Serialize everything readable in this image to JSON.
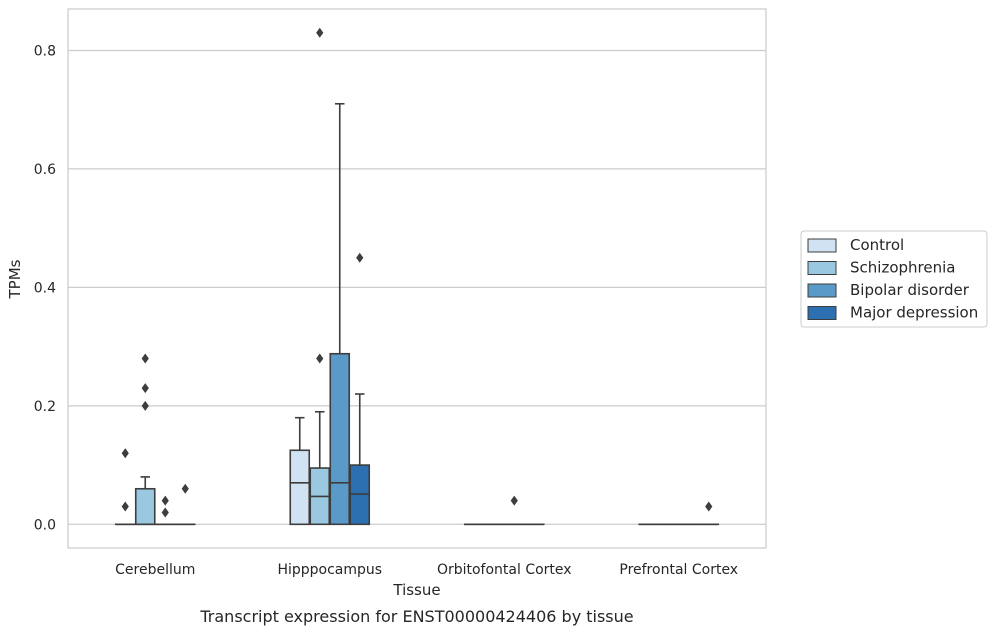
{
  "chart_data": {
    "type": "box",
    "caption": "Transcript expression for ENST00000424406 by tissue",
    "xlabel": "Tissue",
    "ylabel": "TPMs",
    "ylim": [
      -0.04,
      0.87
    ],
    "yticks": [
      0.0,
      0.2,
      0.4,
      0.6,
      0.8
    ],
    "ytick_labels": [
      "0.0",
      "0.2",
      "0.4",
      "0.6",
      "0.8"
    ],
    "grid": "horizontal",
    "legend_position": "right",
    "categories": [
      "Cerebellum",
      "Hipppocampus",
      "Orbitofontal Cortex",
      "Prefrontal Cortex"
    ],
    "series": [
      {
        "name": "Control",
        "color": "#d1e2f2",
        "boxes": [
          {
            "q1": 0,
            "median": 0,
            "q3": 0,
            "whisker_low": 0,
            "whisker_high": 0,
            "outliers": [
              0.03,
              0.12
            ]
          },
          {
            "q1": 0,
            "median": 0.07,
            "q3": 0.125,
            "whisker_low": 0,
            "whisker_high": 0.18,
            "outliers": []
          },
          {
            "q1": 0,
            "median": 0,
            "q3": 0,
            "whisker_low": 0,
            "whisker_high": 0,
            "outliers": []
          },
          {
            "q1": 0,
            "median": 0,
            "q3": 0,
            "whisker_low": 0,
            "whisker_high": 0,
            "outliers": []
          }
        ]
      },
      {
        "name": "Schizophrenia",
        "color": "#9ac8e0",
        "boxes": [
          {
            "q1": 0,
            "median": 0,
            "q3": 0.06,
            "whisker_low": 0,
            "whisker_high": 0.08,
            "outliers": [
              0.2,
              0.23,
              0.28
            ]
          },
          {
            "q1": 0,
            "median": 0.047,
            "q3": 0.095,
            "whisker_low": 0,
            "whisker_high": 0.19,
            "outliers": [
              0.28,
              0.83
            ]
          },
          {
            "q1": 0,
            "median": 0,
            "q3": 0,
            "whisker_low": 0,
            "whisker_high": 0,
            "outliers": []
          },
          {
            "q1": 0,
            "median": 0,
            "q3": 0,
            "whisker_low": 0,
            "whisker_high": 0,
            "outliers": []
          }
        ]
      },
      {
        "name": "Bipolar disorder",
        "color": "#5a9ac8",
        "boxes": [
          {
            "q1": 0,
            "median": 0,
            "q3": 0,
            "whisker_low": 0,
            "whisker_high": 0,
            "outliers": [
              0.02,
              0.04
            ]
          },
          {
            "q1": 0,
            "median": 0.07,
            "q3": 0.288,
            "whisker_low": 0,
            "whisker_high": 0.71,
            "outliers": []
          },
          {
            "q1": 0,
            "median": 0,
            "q3": 0,
            "whisker_low": 0,
            "whisker_high": 0,
            "outliers": [
              0.04
            ]
          },
          {
            "q1": 0,
            "median": 0,
            "q3": 0,
            "whisker_low": 0,
            "whisker_high": 0,
            "outliers": []
          }
        ]
      },
      {
        "name": "Major depression",
        "color": "#2d70b2",
        "boxes": [
          {
            "q1": 0,
            "median": 0,
            "q3": 0,
            "whisker_low": 0,
            "whisker_high": 0,
            "outliers": [
              0.06
            ]
          },
          {
            "q1": 0,
            "median": 0.051,
            "q3": 0.1,
            "whisker_low": 0,
            "whisker_high": 0.22,
            "outliers": [
              0.45
            ]
          },
          {
            "q1": 0,
            "median": 0,
            "q3": 0,
            "whisker_low": 0,
            "whisker_high": 0,
            "outliers": []
          },
          {
            "q1": 0,
            "median": 0,
            "q3": 0,
            "whisker_low": 0,
            "whisker_high": 0,
            "outliers": [
              0.03
            ]
          }
        ]
      }
    ]
  }
}
